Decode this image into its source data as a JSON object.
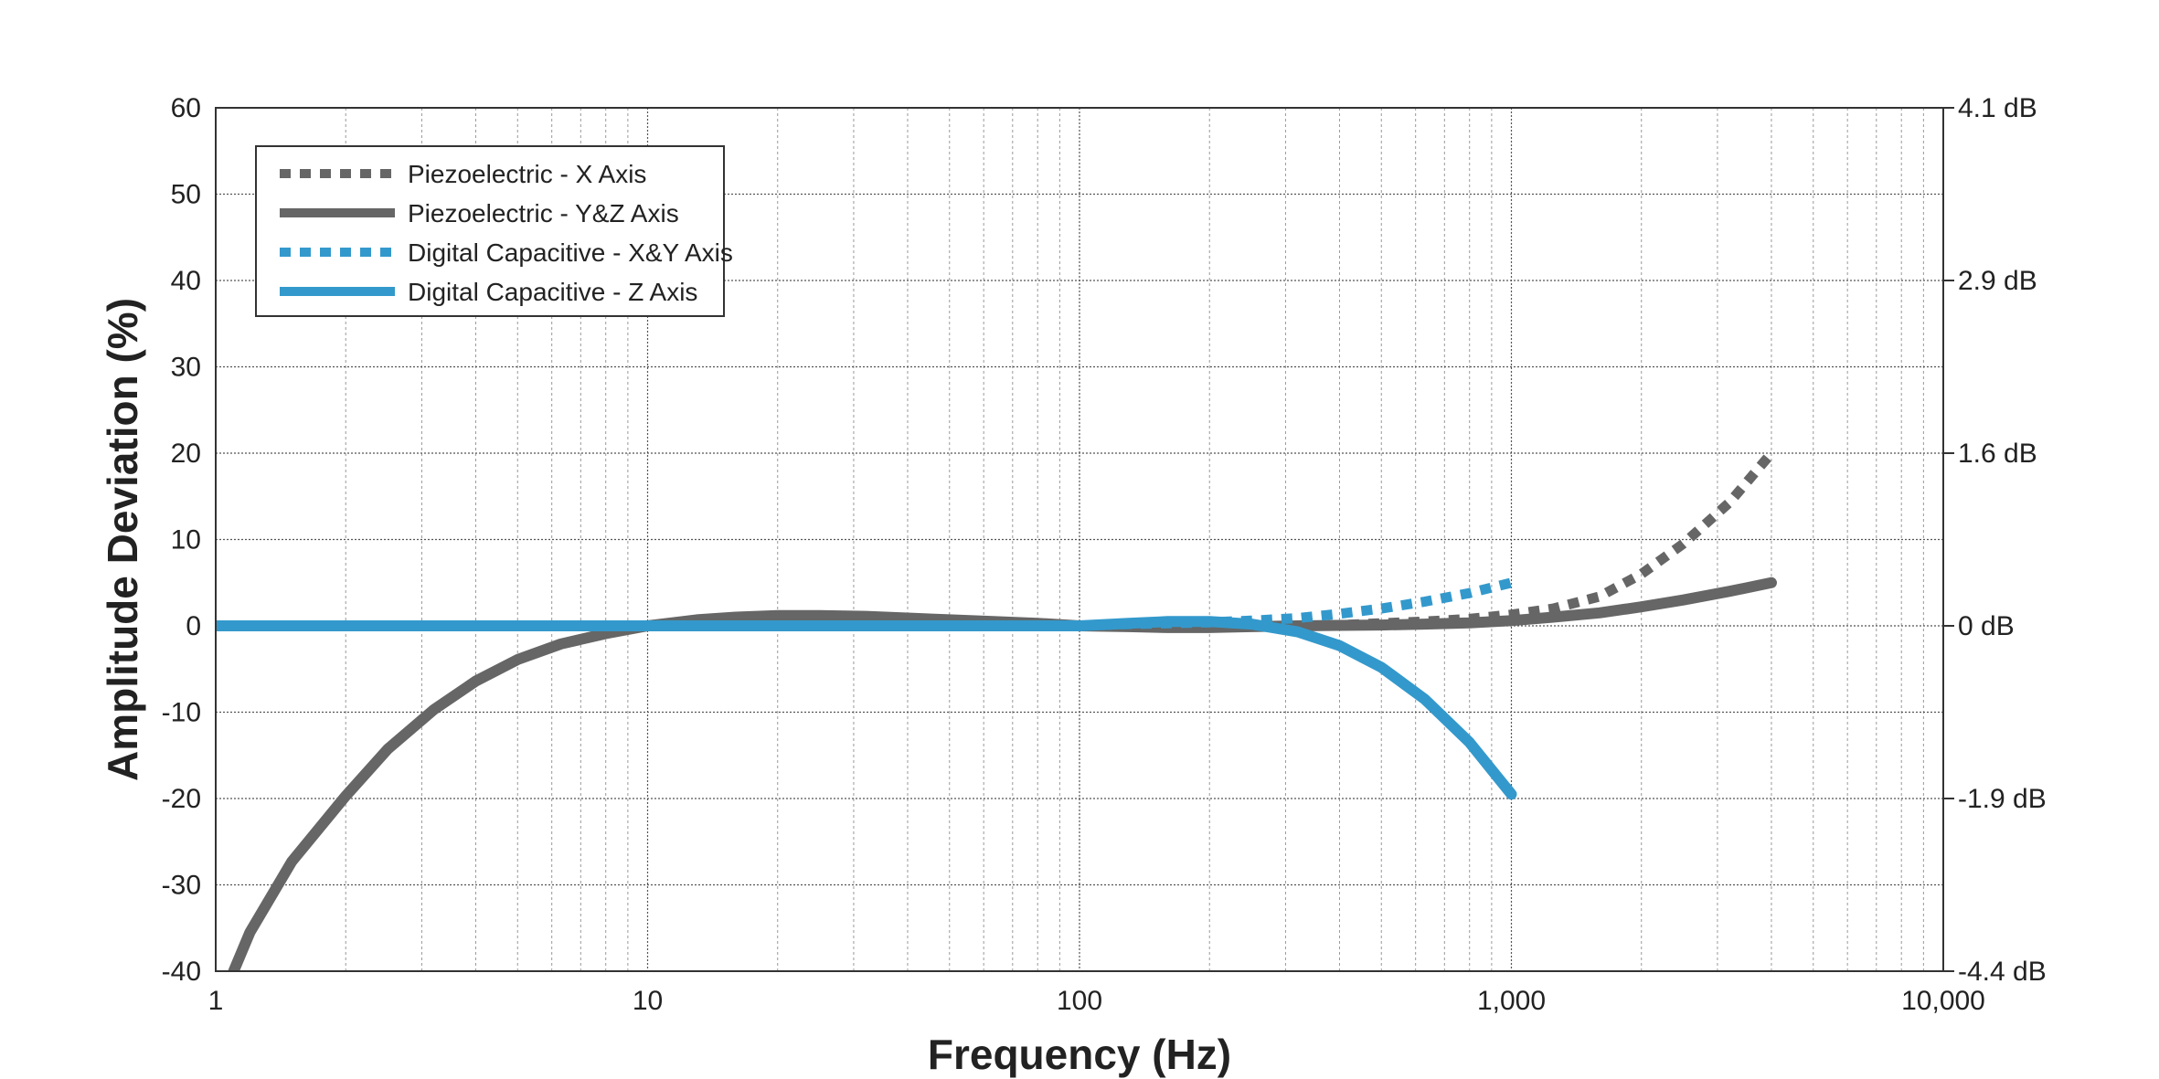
{
  "chart_data": {
    "type": "line",
    "xlabel": "Frequency (Hz)",
    "ylabel": "Amplitude Deviation (%)",
    "x_scale": "log",
    "xlim": [
      1,
      10000
    ],
    "ylim": [
      -40,
      60
    ],
    "grid": true,
    "legend_position": "top-left",
    "x_tick_labels": [
      "1",
      "10",
      "100",
      "1,000",
      "10,000"
    ],
    "x_ticks": [
      1,
      10,
      100,
      1000,
      10000
    ],
    "y_ticks": [
      -40,
      -30,
      -20,
      -10,
      0,
      10,
      20,
      30,
      40,
      50,
      60
    ],
    "y_tick_labels": [
      "-40",
      "-30",
      "-20",
      "-10",
      "0",
      "10",
      "20",
      "30",
      "40",
      "50",
      "60"
    ],
    "right_axis": {
      "labels": [
        "4.1 dB",
        "2.9 dB",
        "1.6 dB",
        "0 dB",
        "-1.9 dB",
        "-4.4 dB"
      ],
      "at_y": [
        60,
        40,
        20,
        0,
        -20,
        -40
      ]
    },
    "series": [
      {
        "name": "Piezoelectric - X Axis",
        "color": "#666666",
        "style": "dotted",
        "points": [
          [
            1.1,
            -40
          ],
          [
            1.2,
            -35.5
          ],
          [
            1.5,
            -27.3
          ],
          [
            2,
            -19.7
          ],
          [
            2.5,
            -14.3
          ],
          [
            3.2,
            -9.7
          ],
          [
            4,
            -6.4
          ],
          [
            5,
            -3.9
          ],
          [
            6.3,
            -2.1
          ],
          [
            8,
            -0.9
          ],
          [
            10,
            0
          ],
          [
            13,
            0.7
          ],
          [
            16,
            1.0
          ],
          [
            20,
            1.2
          ],
          [
            25,
            1.2
          ],
          [
            32,
            1.1
          ],
          [
            40,
            0.9
          ],
          [
            50,
            0.7
          ],
          [
            63,
            0.5
          ],
          [
            80,
            0.3
          ],
          [
            100,
            0
          ],
          [
            130,
            -0.1
          ],
          [
            160,
            -0.2
          ],
          [
            200,
            -0.2
          ],
          [
            250,
            -0.1
          ],
          [
            320,
            0
          ],
          [
            400,
            0.1
          ],
          [
            500,
            0.3
          ],
          [
            630,
            0.5
          ],
          [
            800,
            0.8
          ],
          [
            1000,
            1.3
          ],
          [
            1250,
            2.0
          ],
          [
            1600,
            3.4
          ],
          [
            2000,
            6.0
          ],
          [
            2500,
            9.5
          ],
          [
            3200,
            14.3
          ],
          [
            4000,
            20
          ]
        ]
      },
      {
        "name": "Piezoelectric - Y&Z Axis",
        "color": "#666666",
        "style": "solid",
        "points": [
          [
            1.1,
            -40
          ],
          [
            1.2,
            -35.5
          ],
          [
            1.5,
            -27.3
          ],
          [
            2,
            -19.7
          ],
          [
            2.5,
            -14.3
          ],
          [
            3.2,
            -9.7
          ],
          [
            4,
            -6.4
          ],
          [
            5,
            -3.9
          ],
          [
            6.3,
            -2.1
          ],
          [
            8,
            -0.9
          ],
          [
            10,
            0
          ],
          [
            13,
            0.7
          ],
          [
            16,
            1.0
          ],
          [
            20,
            1.2
          ],
          [
            25,
            1.2
          ],
          [
            32,
            1.1
          ],
          [
            40,
            0.9
          ],
          [
            50,
            0.7
          ],
          [
            63,
            0.5
          ],
          [
            80,
            0.3
          ],
          [
            100,
            0
          ],
          [
            130,
            -0.1
          ],
          [
            160,
            -0.2
          ],
          [
            200,
            -0.2
          ],
          [
            250,
            -0.1
          ],
          [
            320,
            0
          ],
          [
            400,
            0.05
          ],
          [
            500,
            0.1
          ],
          [
            630,
            0.2
          ],
          [
            800,
            0.35
          ],
          [
            1000,
            0.6
          ],
          [
            1250,
            1.0
          ],
          [
            1600,
            1.5
          ],
          [
            2000,
            2.2
          ],
          [
            2500,
            3.0
          ],
          [
            3200,
            4.0
          ],
          [
            4000,
            5
          ]
        ]
      },
      {
        "name": "Digital Capacitive - X&Y Axis",
        "color": "#3399cc",
        "style": "dotted",
        "points": [
          [
            1,
            0
          ],
          [
            2,
            0
          ],
          [
            5,
            0
          ],
          [
            10,
            0
          ],
          [
            20,
            0
          ],
          [
            50,
            0
          ],
          [
            100,
            0
          ],
          [
            130,
            0.2
          ],
          [
            160,
            0.3
          ],
          [
            200,
            0.4
          ],
          [
            250,
            0.6
          ],
          [
            320,
            0.9
          ],
          [
            400,
            1.4
          ],
          [
            500,
            2.0
          ],
          [
            630,
            2.8
          ],
          [
            800,
            3.8
          ],
          [
            1000,
            5
          ]
        ]
      },
      {
        "name": "Digital Capacitive - Z Axis",
        "color": "#3399cc",
        "style": "solid",
        "points": [
          [
            1,
            0
          ],
          [
            2,
            0
          ],
          [
            5,
            0
          ],
          [
            10,
            0
          ],
          [
            20,
            0
          ],
          [
            50,
            0
          ],
          [
            100,
            0
          ],
          [
            130,
            0.3
          ],
          [
            160,
            0.5
          ],
          [
            200,
            0.5
          ],
          [
            250,
            0.2
          ],
          [
            320,
            -0.7
          ],
          [
            400,
            -2.3
          ],
          [
            500,
            -4.8
          ],
          [
            630,
            -8.5
          ],
          [
            800,
            -13.5
          ],
          [
            1000,
            -19.5
          ]
        ]
      }
    ]
  }
}
